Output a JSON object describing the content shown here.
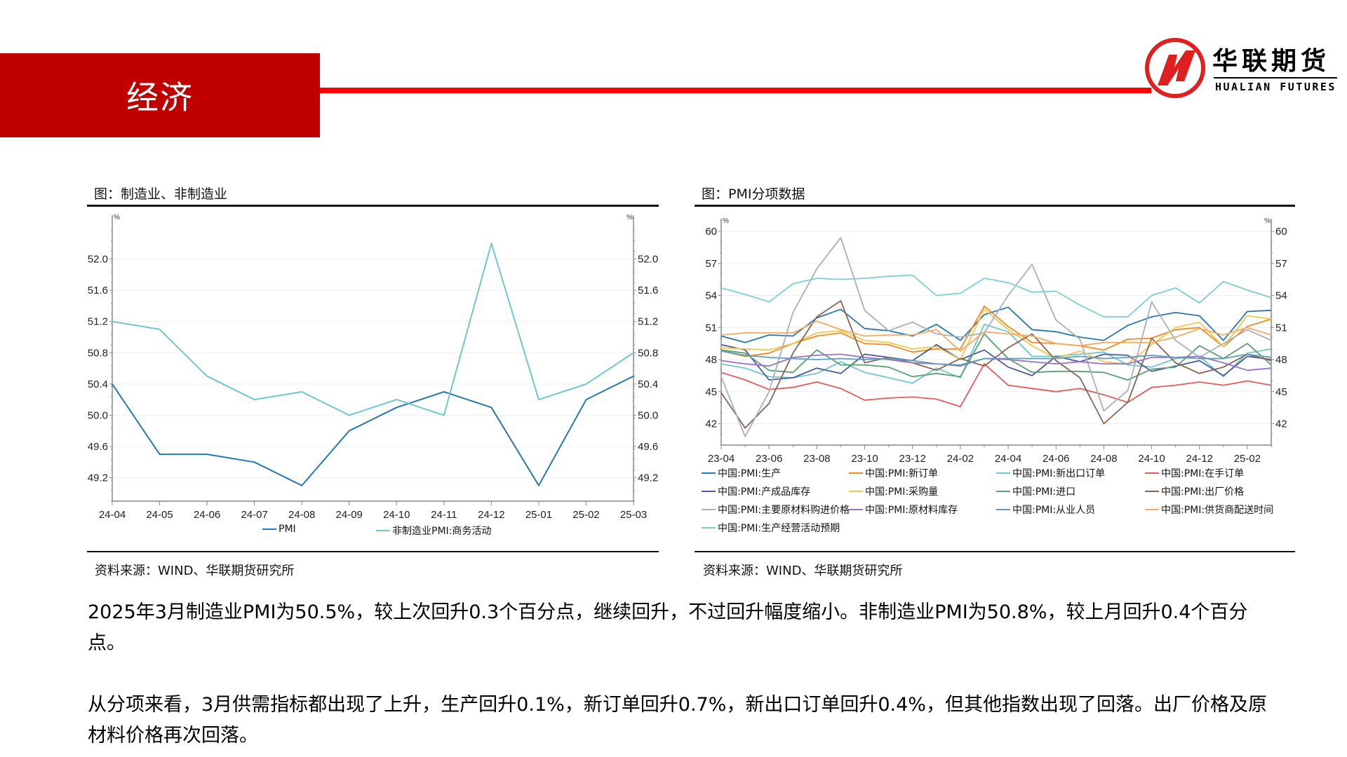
{
  "header": {
    "section_title": "经济",
    "brand_color": "#c00000",
    "rule_color": "#ff0000",
    "logo": {
      "cn": "华联期货",
      "en": "HUALIAN FUTURES"
    }
  },
  "left_panel": {
    "title": "图：制造业、非制造业",
    "source": "资料来源：WIND、华联期货研究所",
    "unit_left": "%",
    "unit_right": "%",
    "legend": [
      {
        "label": "PMI",
        "color": "#2878b0"
      },
      {
        "label": "非制造业PMI:商务活动",
        "color": "#6cc8cc"
      }
    ]
  },
  "right_panel": {
    "title": "图：PMI分项数据",
    "source": "资料来源：WIND、华联期货研究所",
    "unit_left": "%",
    "unit_right": "%",
    "legend": [
      {
        "label": "中国:PMI:生产",
        "color": "#2878b0"
      },
      {
        "label": "中国:PMI:新订单",
        "color": "#f58a1f"
      },
      {
        "label": "中国:PMI:新出口订单",
        "color": "#6cc8cc"
      },
      {
        "label": "中国:PMI:在手订单",
        "color": "#e85a5a"
      },
      {
        "label": "中国:PMI:产成品库存",
        "color": "#4a5aa0"
      },
      {
        "label": "中国:PMI:采购量",
        "color": "#f0c850"
      },
      {
        "label": "中国:PMI:进口",
        "color": "#5aa070"
      },
      {
        "label": "中国:PMI:出厂价格",
        "color": "#8a6450"
      },
      {
        "label": "中国:PMI:主要原材料购进价格",
        "color": "#a8b0bc"
      },
      {
        "label": "中国:PMI:原材料库存",
        "color": "#9a70c8"
      },
      {
        "label": "中国:PMI:从业人员",
        "color": "#5aa0c0"
      },
      {
        "label": "中国:PMI:供货商配送时间",
        "color": "#f8a860"
      },
      {
        "label": "中国:PMI:生产经营活动预期",
        "color": "#78d0d0"
      }
    ]
  },
  "body": {
    "paragraph1": "2025年3月制造业PMI为50.5%，较上次回升0.3个百分点，继续回升，不过回升幅度缩小。非制造业PMI为50.8%，较上月回升0.4个百分点。",
    "paragraph2": "从分项来看，3月供需指标都出现了上升，生产回升0.1%，新订单回升0.7%，新出口订单回升0.4%，但其他指数出现了回落。出厂价格及原材料价格再次回落。"
  },
  "chart_data": [
    {
      "type": "line",
      "title": "图：制造业、非制造业",
      "xlabel": "",
      "ylabel": "%",
      "ylim": [
        48.9,
        52.4
      ],
      "yticks": [
        49.2,
        49.6,
        50.0,
        50.4,
        50.8,
        51.2,
        51.6,
        52.0
      ],
      "grid": true,
      "legend_position": "bottom",
      "categories": [
        "24-04",
        "24-05",
        "24-06",
        "24-07",
        "24-08",
        "24-09",
        "24-10",
        "24-11",
        "24-12",
        "25-01",
        "25-02",
        "25-03"
      ],
      "series": [
        {
          "name": "PMI",
          "color": "#2878b0",
          "values": [
            50.4,
            49.5,
            49.5,
            49.4,
            49.1,
            49.8,
            50.1,
            50.3,
            50.1,
            49.1,
            50.2,
            50.5
          ]
        },
        {
          "name": "非制造业PMI:商务活动",
          "color": "#6cc8cc",
          "values": [
            51.2,
            51.1,
            50.5,
            50.2,
            50.3,
            50.0,
            50.2,
            50.0,
            52.2,
            50.2,
            50.4,
            50.8
          ]
        }
      ]
    },
    {
      "type": "line",
      "title": "图：PMI分项数据",
      "xlabel": "",
      "ylabel": "%",
      "ylim": [
        40,
        60
      ],
      "yticks": [
        42,
        45,
        48,
        51,
        54,
        57,
        60
      ],
      "grid": true,
      "legend_position": "bottom",
      "x_tick_labels": [
        "23-04",
        "23-06",
        "23-08",
        "23-10",
        "23-12",
        "24-02",
        "24-04",
        "24-06",
        "24-08",
        "24-10",
        "24-12",
        "25-02"
      ],
      "categories": [
        "23-04",
        "23-05",
        "23-06",
        "23-07",
        "23-08",
        "23-09",
        "23-10",
        "23-11",
        "23-12",
        "24-01",
        "24-02",
        "24-03",
        "24-04",
        "24-05",
        "24-06",
        "24-07",
        "24-08",
        "24-09",
        "24-10",
        "24-11",
        "24-12",
        "25-01",
        "25-02",
        "25-03"
      ],
      "series": [
        {
          "name": "中国:PMI:生产",
          "color": "#2878b0",
          "values": [
            50.2,
            49.6,
            50.3,
            50.2,
            51.9,
            52.7,
            50.9,
            50.7,
            50.2,
            51.3,
            49.8,
            52.2,
            52.9,
            50.8,
            50.6,
            50.1,
            49.8,
            51.2,
            52.0,
            52.4,
            52.1,
            49.8,
            52.5,
            52.6
          ]
        },
        {
          "name": "中国:PMI:新订单",
          "color": "#f58a1f",
          "values": [
            48.8,
            48.3,
            48.6,
            49.5,
            50.2,
            50.5,
            49.5,
            49.4,
            48.7,
            49.0,
            49.0,
            53.0,
            51.1,
            49.6,
            49.5,
            49.3,
            48.9,
            49.9,
            50.0,
            50.8,
            51.0,
            49.2,
            51.1,
            51.8
          ]
        },
        {
          "name": "中国:PMI:新出口订单",
          "color": "#6cc8cc",
          "values": [
            47.6,
            47.2,
            46.4,
            46.3,
            46.7,
            47.8,
            46.8,
            46.3,
            45.8,
            47.2,
            46.3,
            51.3,
            50.6,
            48.3,
            48.3,
            48.5,
            48.7,
            47.5,
            47.3,
            48.1,
            48.3,
            46.4,
            48.6,
            49.0
          ]
        },
        {
          "name": "中国:PMI:在手订单",
          "color": "#e85a5a",
          "values": [
            46.8,
            46.1,
            45.2,
            45.4,
            45.9,
            45.3,
            44.2,
            44.4,
            44.5,
            44.3,
            43.6,
            47.6,
            45.6,
            45.3,
            45.0,
            45.3,
            44.7,
            44.0,
            45.4,
            45.6,
            45.9,
            45.6,
            46.0,
            45.6
          ]
        },
        {
          "name": "中国:PMI:产成品库存",
          "color": "#4a5aa0",
          "values": [
            49.4,
            48.9,
            46.1,
            46.3,
            47.2,
            46.7,
            48.5,
            48.2,
            47.9,
            49.4,
            48.0,
            48.9,
            47.3,
            46.5,
            48.3,
            47.8,
            48.5,
            48.4,
            46.9,
            47.4,
            47.9,
            46.5,
            48.3,
            48.0
          ]
        },
        {
          "name": "中国:PMI:采购量",
          "color": "#f0c850",
          "values": [
            49.1,
            49.0,
            48.9,
            49.5,
            50.5,
            50.7,
            49.8,
            49.6,
            49.0,
            49.2,
            48.0,
            52.7,
            50.8,
            49.3,
            48.1,
            48.8,
            47.8,
            47.6,
            49.4,
            51.0,
            51.5,
            49.2,
            52.1,
            51.8
          ]
        },
        {
          "name": "中国:PMI:进口",
          "color": "#5aa070",
          "values": [
            48.9,
            48.6,
            47.0,
            46.8,
            48.9,
            47.5,
            47.5,
            47.3,
            46.4,
            46.7,
            46.4,
            50.4,
            48.1,
            46.8,
            46.9,
            46.9,
            46.8,
            46.1,
            47.1,
            47.3,
            49.3,
            48.1,
            49.5,
            47.5
          ]
        },
        {
          "name": "中国:PMI:出厂价格",
          "color": "#8a6450",
          "values": [
            44.9,
            41.6,
            43.9,
            48.6,
            52.0,
            53.5,
            47.7,
            48.2,
            47.7,
            47.0,
            48.1,
            47.4,
            49.1,
            50.4,
            47.9,
            46.3,
            42.0,
            44.0,
            50.0,
            47.7,
            46.7,
            47.3,
            48.5,
            47.9
          ]
        },
        {
          "name": "中国:PMI:主要原材料购进价格",
          "color": "#a8b0bc",
          "values": [
            46.4,
            40.8,
            45.0,
            52.4,
            56.5,
            59.4,
            52.6,
            50.7,
            51.5,
            50.4,
            50.1,
            50.5,
            54.0,
            56.9,
            51.7,
            49.9,
            43.2,
            45.1,
            53.4,
            49.8,
            48.2,
            49.5,
            50.8,
            49.8
          ]
        },
        {
          "name": "中国:PMI:原材料库存",
          "color": "#9a70c8",
          "values": [
            47.9,
            47.6,
            47.4,
            48.2,
            48.4,
            48.5,
            48.2,
            48.0,
            47.7,
            47.6,
            47.4,
            48.1,
            48.0,
            47.8,
            47.6,
            47.8,
            47.6,
            47.6,
            48.2,
            48.2,
            48.3,
            47.7,
            47.0,
            47.2
          ]
        },
        {
          "name": "中国:PMI:从业人员",
          "color": "#5aa0c0",
          "values": [
            48.8,
            48.4,
            48.2,
            48.1,
            48.0,
            48.1,
            48.0,
            48.1,
            47.9,
            47.6,
            47.5,
            48.1,
            48.1,
            48.1,
            48.1,
            48.3,
            48.1,
            48.2,
            48.4,
            48.2,
            48.1,
            48.1,
            48.5,
            48.2
          ]
        },
        {
          "name": "中国:PMI:供货商配送时间",
          "color": "#f8a860",
          "values": [
            50.3,
            50.5,
            50.5,
            50.5,
            51.6,
            50.8,
            50.2,
            50.3,
            50.3,
            50.8,
            48.8,
            50.6,
            50.4,
            50.2,
            49.5,
            49.3,
            49.6,
            49.6,
            49.6,
            50.1,
            50.9,
            50.3,
            51.0,
            50.3
          ]
        },
        {
          "name": "中国:PMI:生产经营活动预期",
          "color": "#78d0d0",
          "values": [
            54.7,
            54.1,
            53.4,
            55.1,
            55.6,
            55.5,
            55.6,
            55.8,
            55.9,
            54.0,
            54.2,
            55.6,
            55.2,
            54.3,
            54.4,
            53.1,
            52.0,
            52.0,
            54.0,
            54.7,
            53.3,
            55.3,
            54.5,
            53.8
          ]
        }
      ]
    }
  ]
}
